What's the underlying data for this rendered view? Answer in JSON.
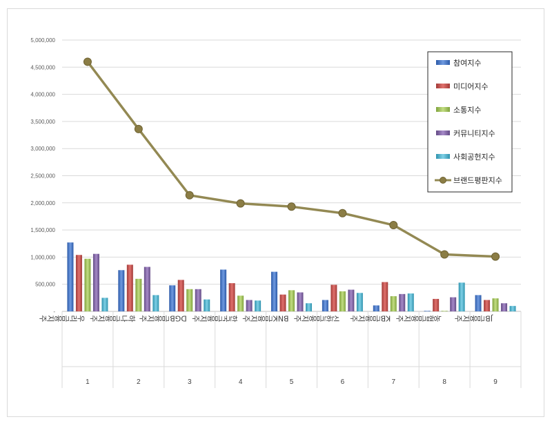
{
  "chart_data": {
    "type": "bar",
    "ylim": [
      0,
      5000000
    ],
    "ytick_labels": [
      "-",
      "500,000",
      "1,000,000",
      "1,500,000",
      "2,000,000",
      "2,500,000",
      "3,000,000",
      "3,500,000",
      "4,000,000",
      "4,500,000",
      "5,000,000"
    ],
    "categories": [
      "우리금융지주",
      "하나금융지주",
      "DGB금융지주",
      "한국금융지주",
      "BNK금융지주",
      "신한금융지주",
      "KB금융지주",
      "농협금융지주",
      "JB금융지주"
    ],
    "ranks": [
      "1",
      "2",
      "3",
      "4",
      "5",
      "6",
      "7",
      "8",
      "9"
    ],
    "grid": true,
    "legend_position": "top-right",
    "series": [
      {
        "name": "참여지수",
        "kind": "bar",
        "color": "#4472c4",
        "values": [
          1270000,
          760000,
          480000,
          770000,
          730000,
          210000,
          110000,
          10000,
          300000
        ]
      },
      {
        "name": "미디어지수",
        "kind": "bar",
        "color": "#c0504d",
        "values": [
          1040000,
          860000,
          580000,
          520000,
          310000,
          490000,
          540000,
          230000,
          210000
        ]
      },
      {
        "name": "소통지수",
        "kind": "bar",
        "color": "#9bbb59",
        "values": [
          970000,
          600000,
          410000,
          290000,
          390000,
          370000,
          280000,
          10000,
          240000
        ]
      },
      {
        "name": "커뮤니티지수",
        "kind": "bar",
        "color": "#8064a2",
        "values": [
          1060000,
          820000,
          410000,
          210000,
          350000,
          400000,
          320000,
          260000,
          150000
        ]
      },
      {
        "name": "사회공헌지수",
        "kind": "bar",
        "color": "#4bacc6",
        "values": [
          250000,
          300000,
          220000,
          200000,
          150000,
          340000,
          330000,
          530000,
          100000
        ]
      },
      {
        "name": "브랜드평판지수",
        "kind": "line",
        "color": "#938953",
        "values": [
          4600000,
          3360000,
          2140000,
          1990000,
          1930000,
          1810000,
          1590000,
          1050000,
          1010000
        ]
      }
    ]
  }
}
